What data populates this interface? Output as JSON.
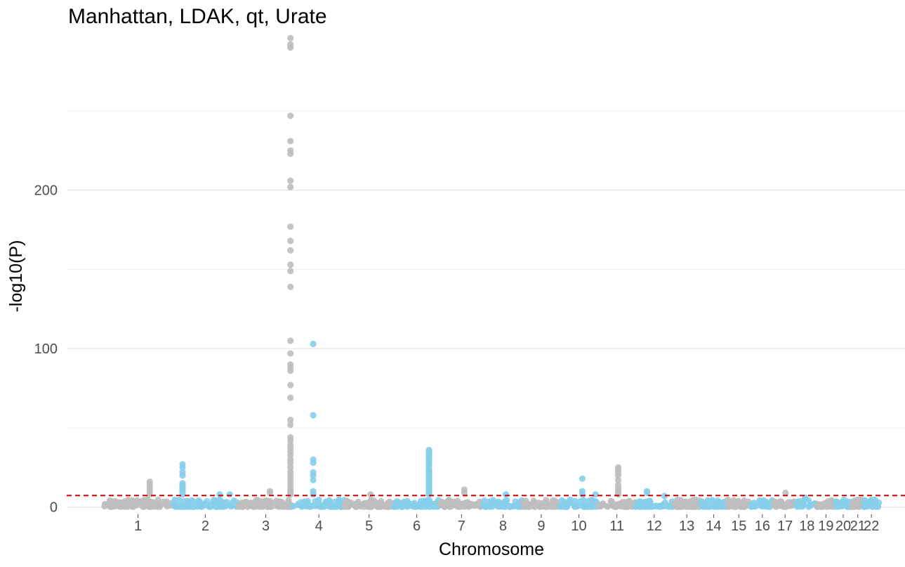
{
  "chart_data": {
    "type": "scatter",
    "title": "Manhattan, LDAK, qt, Urate",
    "xlabel": "Chromosome",
    "ylabel": "-log10(P)",
    "ylim": [
      -1,
      297
    ],
    "y_ticks": [
      0,
      100,
      200
    ],
    "y_tick_labels": [
      "0",
      "100",
      "200"
    ],
    "grid": "horizontal",
    "significance_line": {
      "value": 7.3,
      "color": "#cc0000",
      "style": "dashed"
    },
    "colors": {
      "odd": "#bebebe",
      "even": "#87ceeb"
    },
    "chromosomes": [
      {
        "label": "1",
        "range": [
          0,
          15.6
        ]
      },
      {
        "label": "2",
        "range": [
          15.6,
          30.8
        ]
      },
      {
        "label": "3",
        "range": [
          30.8,
          43.3
        ]
      },
      {
        "label": "4",
        "range": [
          43.3,
          55.1
        ]
      },
      {
        "label": "5",
        "range": [
          55.1,
          66.3
        ]
      },
      {
        "label": "6",
        "range": [
          66.3,
          76.9
        ]
      },
      {
        "label": "7",
        "range": [
          76.9,
          86.8
        ]
      },
      {
        "label": "8",
        "range": [
          86.8,
          95.9
        ]
      },
      {
        "label": "9",
        "range": [
          95.9,
          104.3
        ]
      },
      {
        "label": "10",
        "range": [
          104.3,
          113.1
        ]
      },
      {
        "label": "11",
        "range": [
          113.1,
          121.7
        ]
      },
      {
        "label": "12",
        "range": [
          121.7,
          130.2
        ]
      },
      {
        "label": "13",
        "range": [
          130.2,
          136.6
        ]
      },
      {
        "label": "14",
        "range": [
          136.6,
          142.5
        ]
      },
      {
        "label": "15",
        "range": [
          142.5,
          148.1
        ]
      },
      {
        "label": "16",
        "range": [
          148.1,
          153.3
        ]
      },
      {
        "label": "17",
        "range": [
          153.3,
          158.5
        ]
      },
      {
        "label": "18",
        "range": [
          158.5,
          163.3
        ]
      },
      {
        "label": "19",
        "range": [
          163.3,
          167.2
        ]
      },
      {
        "label": "20",
        "range": [
          167.2,
          171.2
        ]
      },
      {
        "label": "21",
        "range": [
          171.2,
          173.9
        ]
      },
      {
        "label": "22",
        "range": [
          173.9,
          177.4
        ]
      }
    ],
    "peaks": [
      {
        "chr": "1",
        "x": 10.5,
        "y": [
          16,
          14,
          12,
          10,
          8
        ]
      },
      {
        "chr": "2",
        "x": 18.0,
        "y": [
          27,
          25,
          22,
          20,
          15,
          14,
          13,
          12,
          11,
          10,
          8
        ]
      },
      {
        "chr": "2",
        "x": 26.5,
        "y": [
          8
        ]
      },
      {
        "chr": "2",
        "x": 28.8,
        "y": [
          8
        ]
      },
      {
        "chr": "3",
        "x": 38.0,
        "y": [
          10,
          9
        ]
      },
      {
        "chr": "3",
        "x": 42.7,
        "y": [
          296,
          292,
          290,
          247,
          231,
          225,
          223,
          206,
          202,
          177,
          168,
          162,
          153,
          149,
          139,
          105,
          97,
          90,
          88,
          86,
          77,
          69,
          55,
          52,
          44,
          42,
          39,
          37,
          35,
          33,
          30,
          28,
          25,
          22,
          20,
          18,
          16,
          14,
          12,
          10,
          9,
          8
        ]
      },
      {
        "chr": "4",
        "x": 47.9,
        "y": [
          103,
          58,
          30,
          28,
          22,
          20,
          17,
          10,
          8
        ]
      },
      {
        "chr": "5",
        "x": 61.0,
        "y": [
          8
        ]
      },
      {
        "chr": "6",
        "x": 74.4,
        "y": [
          36,
          35,
          34,
          33,
          32,
          31,
          30,
          28,
          27,
          26,
          24,
          23,
          22,
          21,
          20,
          19,
          18,
          17,
          16,
          15,
          14,
          13,
          12,
          11,
          10,
          9,
          8
        ]
      },
      {
        "chr": "7",
        "x": 82.5,
        "y": [
          11,
          9
        ]
      },
      {
        "chr": "8",
        "x": 92.0,
        "y": [
          8
        ]
      },
      {
        "chr": "10",
        "x": 109.5,
        "y": [
          18,
          10,
          8
        ]
      },
      {
        "chr": "10",
        "x": 112.5,
        "y": [
          8
        ]
      },
      {
        "chr": "11",
        "x": 117.7,
        "y": [
          25,
          24,
          22,
          20,
          17,
          14,
          12,
          10,
          9,
          8
        ]
      },
      {
        "chr": "12",
        "x": 124.3,
        "y": [
          10,
          9
        ]
      },
      {
        "chr": "12",
        "x": 128.3,
        "y": [
          7
        ]
      },
      {
        "chr": "17",
        "x": 156.0,
        "y": [
          9
        ]
      },
      {
        "chr": "18",
        "x": 160.5,
        "y": [
          6
        ]
      }
    ]
  }
}
